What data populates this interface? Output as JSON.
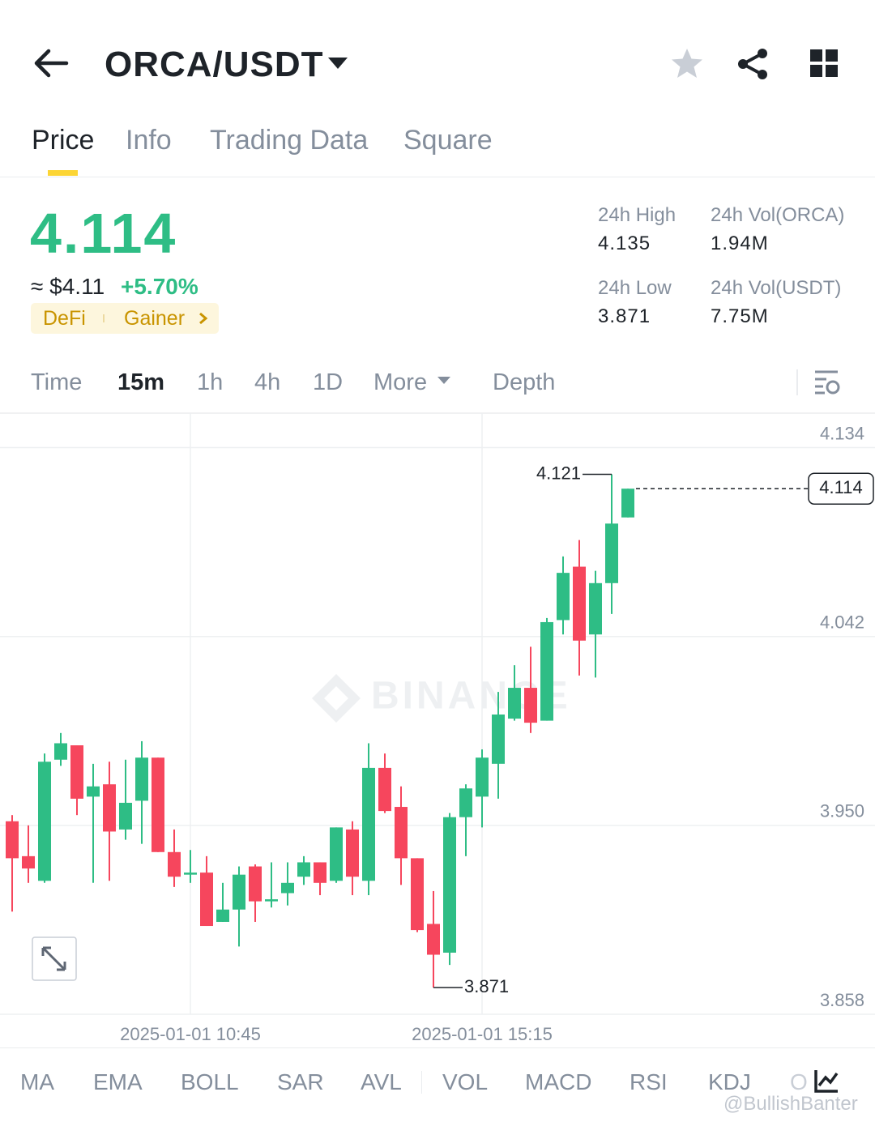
{
  "header": {
    "title": "ORCA/USDT"
  },
  "tabs": [
    "Price",
    "Info",
    "Trading Data",
    "Square"
  ],
  "price": {
    "last": "4.114",
    "usd": "≈ $4.11",
    "change": "+5.70%",
    "tags": [
      "DeFi",
      "Gainer"
    ]
  },
  "stats": [
    {
      "label": "24h High",
      "value": "4.135"
    },
    {
      "label": "24h Vol(ORCA)",
      "value": "1.94M"
    },
    {
      "label": "24h Low",
      "value": "3.871"
    },
    {
      "label": "24h Vol(USDT)",
      "value": "7.75M"
    }
  ],
  "intervals": [
    "Time",
    "15m",
    "1h",
    "4h",
    "1D",
    "More",
    "Depth"
  ],
  "chart_data": {
    "type": "candlestick",
    "watermark": "BINANCE",
    "categories": [
      null,
      null,
      null,
      null,
      null,
      null,
      null,
      null,
      null,
      null,
      null,
      "2025-01-01 10:45",
      null,
      null,
      null,
      null,
      null,
      null,
      null,
      null,
      null,
      null,
      null,
      null,
      null,
      null,
      null,
      null,
      null,
      "2025-01-01 15:15",
      null,
      null,
      null,
      null,
      null,
      null,
      null,
      null,
      null
    ],
    "open": [
      3.952,
      3.935,
      3.923,
      3.982,
      3.989,
      3.964,
      3.97,
      3.948,
      3.962,
      3.983,
      3.937,
      3.926,
      3.927,
      3.903,
      3.909,
      3.93,
      3.913,
      3.917,
      3.925,
      3.932,
      3.923,
      3.948,
      3.923,
      3.978,
      3.959,
      3.934,
      3.902,
      3.888,
      3.954,
      3.964,
      3.98,
      4.002,
      4.017,
      4.001,
      4.05,
      4.076,
      4.043,
      4.068,
      4.1
    ],
    "high": [
      3.955,
      3.95,
      3.985,
      3.995,
      3.989,
      3.98,
      3.981,
      3.982,
      3.991,
      3.983,
      3.948,
      3.938,
      3.935,
      3.922,
      3.93,
      3.931,
      3.932,
      3.932,
      3.935,
      3.932,
      3.949,
      3.952,
      3.99,
      3.985,
      3.969,
      3.934,
      3.918,
      3.956,
      3.97,
      3.987,
      4.015,
      4.028,
      4.037,
      4.051,
      4.081,
      4.089,
      4.074,
      4.121,
      4.114
    ],
    "low": [
      3.908,
      3.922,
      3.922,
      3.979,
      3.955,
      3.922,
      3.923,
      3.943,
      3.941,
      3.937,
      3.92,
      3.922,
      3.901,
      3.903,
      3.891,
      3.903,
      3.91,
      3.911,
      3.921,
      3.916,
      3.922,
      3.916,
      3.916,
      3.956,
      3.921,
      3.898,
      3.871,
      3.882,
      3.935,
      3.949,
      3.963,
      4.001,
      3.995,
      4.001,
      4.043,
      4.023,
      4.022,
      4.053,
      4.1
    ],
    "close": [
      3.934,
      3.929,
      3.981,
      3.99,
      3.963,
      3.969,
      3.947,
      3.961,
      3.983,
      3.937,
      3.925,
      3.927,
      3.901,
      3.909,
      3.926,
      3.913,
      3.914,
      3.922,
      3.932,
      3.922,
      3.949,
      3.925,
      3.978,
      3.957,
      3.934,
      3.899,
      3.887,
      3.954,
      3.968,
      3.983,
      4.004,
      4.017,
      4.0,
      4.049,
      4.073,
      4.04,
      4.068,
      4.097,
      4.114
    ],
    "up_color": "#2ebd85",
    "down_color": "#f6465d",
    "ylim": [
      3.858,
      4.15
    ],
    "yticks": [
      4.134,
      4.042,
      {
        "value": 3.95,
        "label": "3.950"
      },
      3.858
    ],
    "grid": true
  },
  "indicators": [
    "MA",
    "EMA",
    "BOLL",
    "SAR",
    "AVL",
    "VOL",
    "MACD",
    "RSI",
    "KDJ",
    "O"
  ],
  "watermark": "@BullishBanter"
}
